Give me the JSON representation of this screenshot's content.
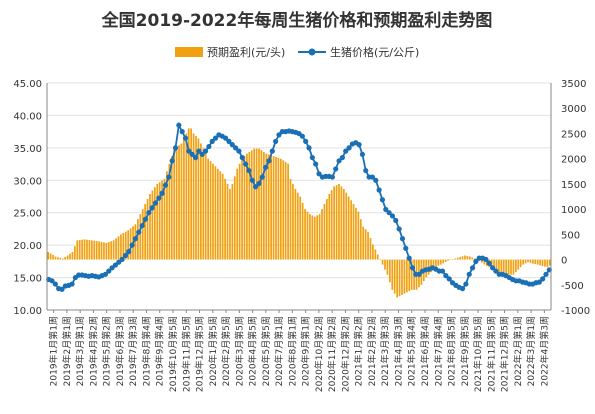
{
  "chart_data": {
    "type": "bar+line",
    "title": "全国2019-2022年每周生猪价格和预期盈利走势图",
    "colors": {
      "bar": "#f0a010",
      "line": "#1a6fb5",
      "text": "#333333",
      "grid": "#d9d9d9",
      "axis": "#888888"
    },
    "legend": {
      "position": "top",
      "items": [
        {
          "name": "预期盈利(元/头)",
          "type": "bar"
        },
        {
          "name": "生猪价格(元/公斤)",
          "type": "line"
        }
      ]
    },
    "price_axis": {
      "position": "left",
      "min": 10,
      "max": 45,
      "ticks": [
        "10.00",
        "15.00",
        "20.00",
        "25.00",
        "30.00",
        "35.00",
        "40.00",
        "45.00"
      ]
    },
    "profit_axis": {
      "position": "right",
      "min": -1000,
      "max": 3500,
      "ticks": [
        "-1000",
        "-500",
        "0",
        "500",
        "1000",
        "1500",
        "2000",
        "2500",
        "3000",
        "3500"
      ]
    },
    "x_tick_labels": [
      "2019年1月第1周",
      "2019年2月第1周",
      "2019年3月第1周",
      "2019年4月第2周",
      "2019年5月第2周",
      "2019年6月第3周",
      "2019年7月第3周",
      "2019年8月第4周",
      "2019年9月第4周",
      "2019年10月第5周",
      "2019年11月第5周",
      "2019年12月第5周",
      "2020年1月第5周",
      "2020年2月第5周",
      "2020年3月第5周",
      "2020年4月第5周",
      "2020年5月第5周",
      "2020年7月第1周",
      "2020年8月第1周",
      "2020年9月第1周",
      "2020年10月第2周",
      "2020年11月第2周",
      "2020年12月第2周",
      "2021年1月第2周",
      "2021年2月第2周",
      "2021年3月第3周",
      "2021年4月第3周",
      "2021年5月第4周",
      "2021年6月第4周",
      "2021年7月第4周",
      "2021年8月第5周",
      "2021年9月第5周",
      "2021年10月第5周",
      "2021年11月第5周",
      "2021年12月第5周",
      "2022年2月第1周",
      "2022年3月第1周",
      "2022年4月第3周"
    ],
    "price_anchors": [
      [
        0,
        14.7
      ],
      [
        1,
        14.5
      ],
      [
        2,
        14.0
      ],
      [
        3,
        13.3
      ],
      [
        4,
        13.2
      ],
      [
        5,
        13.7
      ],
      [
        6,
        13.8
      ],
      [
        7,
        14.0
      ],
      [
        8,
        15.0
      ],
      [
        9,
        15.4
      ],
      [
        10,
        15.4
      ],
      [
        12,
        15.2
      ],
      [
        13,
        15.3
      ],
      [
        15,
        15.1
      ],
      [
        17,
        15.5
      ],
      [
        19,
        16.5
      ],
      [
        22,
        17.8
      ],
      [
        24,
        19.0
      ],
      [
        26,
        21.0
      ],
      [
        28,
        23.0
      ],
      [
        30,
        25.0
      ],
      [
        32,
        26.5
      ],
      [
        34,
        28.0
      ],
      [
        36,
        30.5
      ],
      [
        37,
        33.0
      ],
      [
        38,
        35.0
      ],
      [
        39,
        38.5
      ],
      [
        40,
        37.5
      ],
      [
        41,
        36.5
      ],
      [
        42,
        34.5
      ],
      [
        43,
        34.0
      ],
      [
        44,
        33.5
      ],
      [
        45,
        34.5
      ],
      [
        46,
        34.0
      ],
      [
        47,
        34.5
      ],
      [
        48,
        35.2
      ],
      [
        49,
        36.0
      ],
      [
        50,
        36.5
      ],
      [
        51,
        37.0
      ],
      [
        52,
        36.8
      ],
      [
        53,
        36.5
      ],
      [
        54,
        36.0
      ],
      [
        55,
        35.5
      ],
      [
        56,
        35.0
      ],
      [
        57,
        34.5
      ],
      [
        58,
        33.5
      ],
      [
        59,
        32.5
      ],
      [
        60,
        31.5
      ],
      [
        61,
        30.0
      ],
      [
        62,
        29.0
      ],
      [
        63,
        29.5
      ],
      [
        64,
        30.5
      ],
      [
        65,
        32.0
      ],
      [
        66,
        33.0
      ],
      [
        67,
        34.5
      ],
      [
        68,
        36.0
      ],
      [
        69,
        37.0
      ],
      [
        70,
        37.5
      ],
      [
        71,
        37.5
      ],
      [
        72,
        37.6
      ],
      [
        73,
        37.5
      ],
      [
        74,
        37.4
      ],
      [
        75,
        37.2
      ],
      [
        76,
        36.8
      ],
      [
        77,
        36.0
      ],
      [
        78,
        35.0
      ],
      [
        79,
        33.5
      ],
      [
        80,
        32.5
      ],
      [
        81,
        31.0
      ],
      [
        82,
        30.5
      ],
      [
        83,
        30.6
      ],
      [
        84,
        30.6
      ],
      [
        85,
        30.5
      ],
      [
        87,
        33.0
      ],
      [
        88,
        33.5
      ],
      [
        89,
        34.5
      ],
      [
        90,
        35.0
      ],
      [
        91,
        35.6
      ],
      [
        92,
        35.8
      ],
      [
        93,
        35.5
      ],
      [
        94,
        34.0
      ],
      [
        95,
        31.5
      ],
      [
        96,
        30.5
      ],
      [
        97,
        30.5
      ],
      [
        98,
        30.0
      ],
      [
        99,
        28.5
      ],
      [
        100,
        27.0
      ],
      [
        101,
        25.5
      ],
      [
        102,
        25.0
      ],
      [
        103,
        24.5
      ],
      [
        104,
        23.8
      ],
      [
        105,
        22.5
      ],
      [
        106,
        21.0
      ],
      [
        107,
        19.5
      ],
      [
        108,
        18.0
      ],
      [
        109,
        16.5
      ],
      [
        110,
        15.5
      ],
      [
        111,
        15.5
      ],
      [
        112,
        16.0
      ],
      [
        113,
        16.2
      ],
      [
        114,
        16.3
      ],
      [
        115,
        16.5
      ],
      [
        116,
        16.3
      ],
      [
        117,
        16.0
      ],
      [
        118,
        16.0
      ],
      [
        119,
        15.3
      ],
      [
        120,
        14.8
      ],
      [
        121,
        14.2
      ],
      [
        122,
        13.8
      ],
      [
        123,
        13.5
      ],
      [
        124,
        13.3
      ],
      [
        125,
        14.0
      ],
      [
        126,
        15.5
      ],
      [
        127,
        16.5
      ],
      [
        128,
        17.5
      ],
      [
        129,
        18.0
      ],
      [
        130,
        18.0
      ],
      [
        131,
        17.8
      ],
      [
        132,
        17.2
      ],
      [
        133,
        16.5
      ],
      [
        134,
        16.0
      ],
      [
        135,
        15.5
      ],
      [
        136,
        15.5
      ],
      [
        137,
        15.3
      ],
      [
        138,
        15.0
      ],
      [
        139,
        14.7
      ],
      [
        140,
        14.5
      ],
      [
        141,
        14.5
      ],
      [
        142,
        14.3
      ],
      [
        143,
        14.2
      ],
      [
        144,
        14.0
      ],
      [
        145,
        14.0
      ],
      [
        146,
        14.2
      ],
      [
        147,
        14.3
      ],
      [
        148,
        14.8
      ],
      [
        149,
        15.5
      ],
      [
        150,
        16.2
      ]
    ],
    "profit_anchors": [
      [
        0,
        150
      ],
      [
        3,
        60
      ],
      [
        6,
        20
      ],
      [
        8,
        80
      ],
      [
        10,
        150
      ],
      [
        12,
        380
      ],
      [
        15,
        400
      ],
      [
        18,
        380
      ],
      [
        21,
        360
      ],
      [
        24,
        330
      ],
      [
        27,
        380
      ],
      [
        30,
        500
      ],
      [
        33,
        580
      ],
      [
        36,
        700
      ],
      [
        39,
        1000
      ],
      [
        42,
        1300
      ],
      [
        45,
        1500
      ],
      [
        48,
        1600
      ],
      [
        50,
        1900
      ],
      [
        52,
        2200
      ],
      [
        55,
        2300
      ],
      [
        57,
        2500
      ],
      [
        58,
        2600
      ],
      [
        59,
        2600
      ],
      [
        60,
        2500
      ],
      [
        62,
        2400
      ],
      [
        64,
        2200
      ],
      [
        66,
        2000
      ],
      [
        68,
        1900
      ],
      [
        70,
        1800
      ],
      [
        72,
        1700
      ],
      [
        74,
        1500
      ],
      [
        75,
        1400
      ],
      [
        76,
        1500
      ],
      [
        78,
        1800
      ],
      [
        80,
        2000
      ],
      [
        82,
        2100
      ],
      [
        85,
        2200
      ],
      [
        87,
        2200
      ],
      [
        90,
        2100
      ],
      [
        93,
        2050
      ],
      [
        96,
        2000
      ],
      [
        99,
        1900
      ],
      [
        100,
        1600
      ],
      [
        102,
        1400
      ],
      [
        104,
        1250
      ],
      [
        106,
        1000
      ],
      [
        108,
        900
      ],
      [
        110,
        850
      ],
      [
        112,
        900
      ],
      [
        114,
        1100
      ],
      [
        116,
        1300
      ],
      [
        118,
        1450
      ],
      [
        120,
        1500
      ],
      [
        122,
        1400
      ],
      [
        124,
        1250
      ],
      [
        126,
        1100
      ],
      [
        128,
        950
      ],
      [
        129,
        800
      ],
      [
        130,
        650
      ],
      [
        132,
        550
      ],
      [
        134,
        300
      ],
      [
        136,
        100
      ],
      [
        138,
        -100
      ],
      [
        140,
        -300
      ],
      [
        142,
        -600
      ],
      [
        144,
        -750
      ],
      [
        146,
        -700
      ],
      [
        148,
        -650
      ],
      [
        150,
        -600
      ],
      [
        152,
        -600
      ],
      [
        154,
        -500
      ],
      [
        156,
        -350
      ],
      [
        158,
        -250
      ],
      [
        160,
        -150
      ],
      [
        162,
        -100
      ],
      [
        164,
        -50
      ],
      [
        166,
        0
      ],
      [
        168,
        20
      ],
      [
        170,
        50
      ],
      [
        172,
        80
      ],
      [
        174,
        60
      ],
      [
        176,
        20
      ],
      [
        178,
        -20
      ],
      [
        180,
        -100
      ],
      [
        182,
        -150
      ],
      [
        184,
        -200
      ],
      [
        186,
        -250
      ],
      [
        188,
        -280
      ],
      [
        190,
        -300
      ],
      [
        192,
        -300
      ],
      [
        194,
        -200
      ],
      [
        196,
        -100
      ],
      [
        198,
        -50
      ],
      [
        200,
        -80
      ],
      [
        202,
        -100
      ],
      [
        204,
        -130
      ],
      [
        206,
        -150
      ],
      [
        207,
        -120
      ]
    ],
    "profit_x_scale": 0.75
  }
}
